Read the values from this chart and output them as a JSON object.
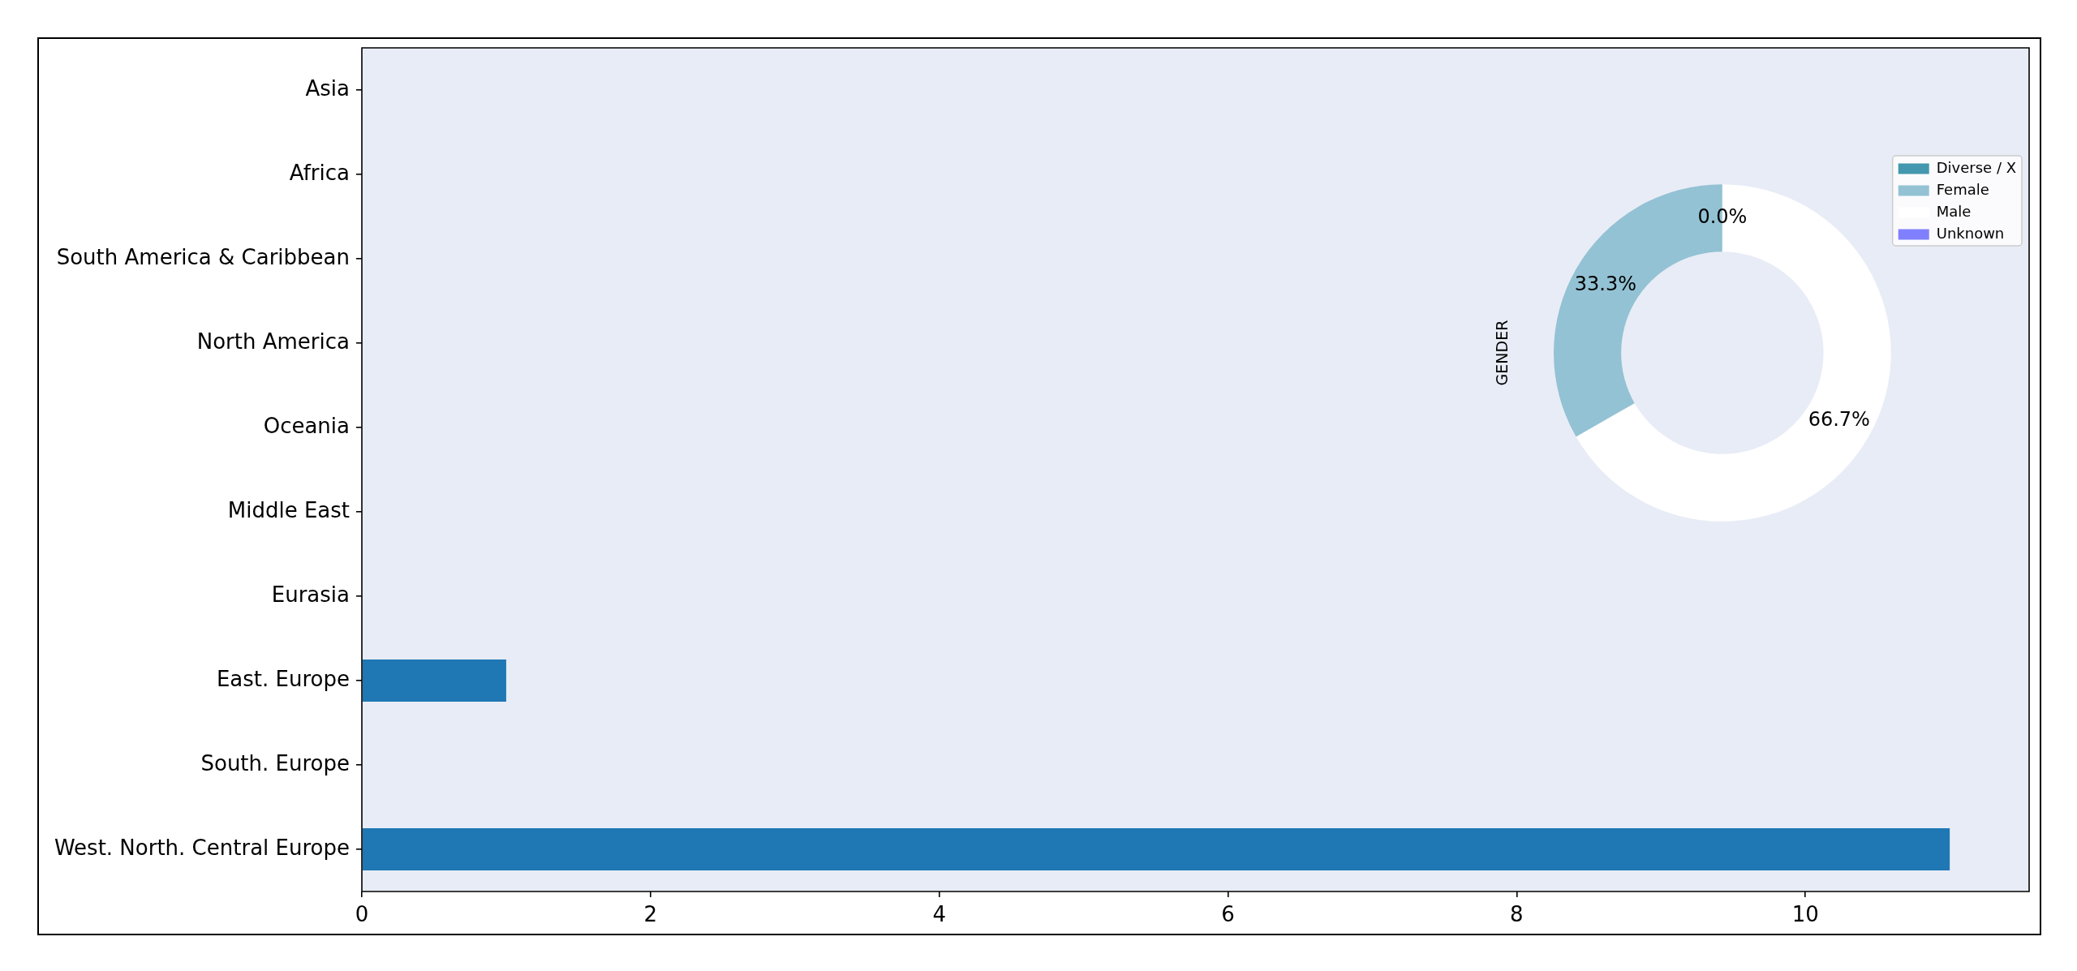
{
  "chart_data": [
    {
      "type": "bar",
      "orientation": "horizontal",
      "categories": [
        "Asia",
        "Africa",
        "South America & Caribbean",
        "North America",
        "Oceania",
        "Middle East",
        "Eurasia",
        "East. Europe",
        "South. Europe",
        "West. North. Central Europe"
      ],
      "values": [
        0,
        0,
        0,
        0,
        0,
        0,
        0,
        1,
        0,
        11
      ],
      "color": "#1f77b4",
      "xlim": [
        0,
        11.55
      ],
      "xticks": [
        0,
        2,
        4,
        6,
        8,
        10
      ]
    },
    {
      "type": "donut",
      "ylabel": "GENDER",
      "categories": [
        "Diverse / X",
        "Female",
        "Male",
        "Unknown"
      ],
      "values": [
        0,
        33.3,
        66.7,
        0
      ],
      "colors": [
        "#4397ae",
        "#93c2d4",
        "#ffffff",
        "#8080ff"
      ],
      "value_labels": [
        "0.0%",
        "33.3%",
        "66.7%",
        null
      ],
      "legend": "top right"
    }
  ]
}
